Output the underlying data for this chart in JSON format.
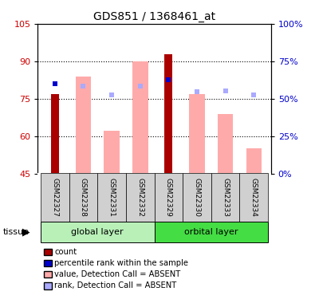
{
  "title": "GDS851 / 1368461_at",
  "samples": [
    "GSM22327",
    "GSM22328",
    "GSM22331",
    "GSM22332",
    "GSM22329",
    "GSM22330",
    "GSM22333",
    "GSM22334"
  ],
  "count_values": [
    77.0,
    null,
    null,
    null,
    93.0,
    null,
    null,
    null
  ],
  "percentile_rank_values": [
    60.0,
    null,
    null,
    null,
    62.5,
    null,
    null,
    null
  ],
  "value_absent": [
    null,
    84.0,
    62.0,
    90.0,
    null,
    77.0,
    69.0,
    55.0
  ],
  "rank_absent": [
    null,
    58.5,
    52.5,
    58.5,
    null,
    54.5,
    55.0,
    52.5
  ],
  "ylim": [
    45,
    105
  ],
  "yticks_left": [
    45,
    60,
    75,
    90,
    105
  ],
  "yticks_right": [
    0,
    25,
    50,
    75,
    100
  ],
  "count_color": "#aa0000",
  "percentile_color": "#0000cc",
  "value_absent_color": "#ffaaaa",
  "rank_absent_color": "#aaaaff",
  "background_sample": "#d0d0d0",
  "global_layer_color": "#b8f0b8",
  "orbital_layer_color": "#44dd44",
  "legend_items": [
    {
      "color": "#aa0000",
      "label": "count"
    },
    {
      "color": "#0000cc",
      "label": "percentile rank within the sample"
    },
    {
      "color": "#ffaaaa",
      "label": "value, Detection Call = ABSENT"
    },
    {
      "color": "#aaaaff",
      "label": "rank, Detection Call = ABSENT"
    }
  ]
}
